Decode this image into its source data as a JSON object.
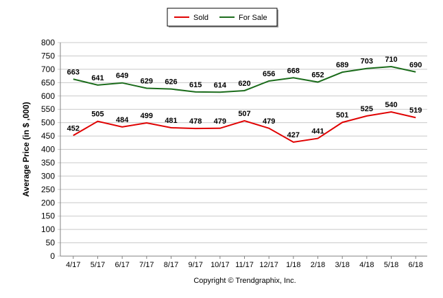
{
  "chart_data": {
    "type": "line",
    "title": "",
    "xlabel": "",
    "ylabel": "Average Price (in $ ,000)",
    "categories": [
      "4/17",
      "5/17",
      "6/17",
      "7/17",
      "8/17",
      "9/17",
      "10/17",
      "11/17",
      "12/17",
      "1/18",
      "2/18",
      "3/18",
      "4/18",
      "5/18",
      "6/18"
    ],
    "series": [
      {
        "name": "Sold",
        "color": "#e00000",
        "values": [
          452,
          505,
          484,
          499,
          481,
          478,
          479,
          507,
          479,
          427,
          441,
          501,
          525,
          540,
          519
        ]
      },
      {
        "name": "For Sale",
        "color": "#1a6b1a",
        "values": [
          663,
          641,
          649,
          629,
          626,
          615,
          614,
          620,
          656,
          668,
          652,
          689,
          703,
          710,
          690
        ]
      }
    ],
    "ylim": [
      0,
      800
    ],
    "ystep": 50,
    "grid": true,
    "legend_position": "top-center"
  },
  "footer": "Copyright © Trendgraphix, Inc."
}
